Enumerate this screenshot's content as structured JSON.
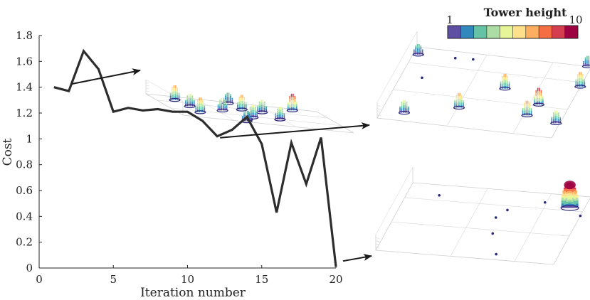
{
  "chart_data": {
    "type": "line",
    "title": "",
    "xlabel": "Iteration number",
    "ylabel": "Cost",
    "xlim": [
      0,
      20
    ],
    "ylim": [
      0,
      1.8
    ],
    "xticks": [
      "0",
      "5",
      "10",
      "15",
      "20"
    ],
    "yticks": [
      "0",
      "0.2",
      "0.4",
      "0.6",
      "0.8",
      "1",
      "1.2",
      "1.4",
      "1.6",
      "1.8"
    ],
    "grid": false,
    "series": [
      {
        "x": [
          1,
          2,
          3,
          4,
          5,
          6,
          7,
          8,
          9,
          10,
          11,
          12,
          13,
          14,
          15,
          16,
          17,
          18,
          19,
          20
        ],
        "values": [
          1.4,
          1.37,
          1.68,
          1.54,
          1.21,
          1.24,
          1.22,
          1.23,
          1.21,
          1.21,
          1.14,
          1.02,
          1.07,
          1.17,
          0.96,
          0.43,
          0.97,
          0.65,
          1.01,
          0.01
        ]
      }
    ],
    "colorbar": {
      "title": "Tower height",
      "min_label": "1",
      "max_label": "10",
      "colors": [
        "#5e4fa2",
        "#3288bd",
        "#66c2a5",
        "#abdda4",
        "#e6f598",
        "#fee08b",
        "#fdae61",
        "#f46d43",
        "#d53e4f",
        "#9e0142"
      ]
    },
    "insets": [
      {
        "name": "early",
        "arrow_from_iteration": 2,
        "towers": [
          {
            "u": 0.13,
            "v": 0.18,
            "height": 5
          },
          {
            "u": 0.47,
            "v": 0.05,
            "height": 3
          },
          {
            "u": 0.84,
            "v": 0.08,
            "height": 6
          },
          {
            "u": 0.49,
            "v": 0.33,
            "height": 5
          },
          {
            "u": 0.6,
            "v": 0.37,
            "height": 4
          },
          {
            "u": 0.16,
            "v": 0.45,
            "height": 4
          },
          {
            "u": 0.34,
            "v": 0.5,
            "height": 4
          },
          {
            "u": 0.16,
            "v": 0.73,
            "height": 5
          },
          {
            "u": 0.47,
            "v": 0.72,
            "height": 4
          },
          {
            "u": 0.64,
            "v": 0.67,
            "height": 4
          },
          {
            "u": 0.38,
            "v": 0.97,
            "height": 3
          }
        ],
        "dots": [
          {
            "u": 0.44,
            "v": 0.83
          }
        ]
      },
      {
        "name": "middle",
        "arrow_from_iteration": 12,
        "towers": [
          {
            "u": 0.13,
            "v": 0.11,
            "height": 4
          },
          {
            "u": 0.41,
            "v": 0.26,
            "height": 5
          },
          {
            "u": 0.8,
            "v": 0.26,
            "height": 5
          },
          {
            "u": 0.98,
            "v": 0.2,
            "height": 4
          },
          {
            "u": 0.83,
            "v": 0.42,
            "height": 6
          },
          {
            "u": 0.6,
            "v": 0.58,
            "height": 5
          },
          {
            "u": 0.03,
            "v": 0.9,
            "height": 3
          },
          {
            "u": 1.0,
            "v": 0.72,
            "height": 5
          },
          {
            "u": 0.98,
            "v": 1.0,
            "height": 3
          }
        ],
        "dots": [
          {
            "u": 0.12,
            "v": 0.6
          },
          {
            "u": 0.24,
            "v": 0.91
          },
          {
            "u": 0.34,
            "v": 0.92
          }
        ]
      },
      {
        "name": "final",
        "arrow_from_iteration": 20,
        "towers": [
          {
            "u": 0.92,
            "v": 0.82,
            "height": 10
          }
        ],
        "dots": [
          {
            "u": 0.66,
            "v": 0.08
          },
          {
            "u": 0.58,
            "v": 0.37
          },
          {
            "u": 0.55,
            "v": 0.6
          },
          {
            "u": 0.59,
            "v": 0.72
          },
          {
            "u": 0.77,
            "v": 0.87
          },
          {
            "u": 1.0,
            "v": 0.72
          },
          {
            "u": 0.18,
            "v": 0.85
          }
        ]
      }
    ]
  }
}
